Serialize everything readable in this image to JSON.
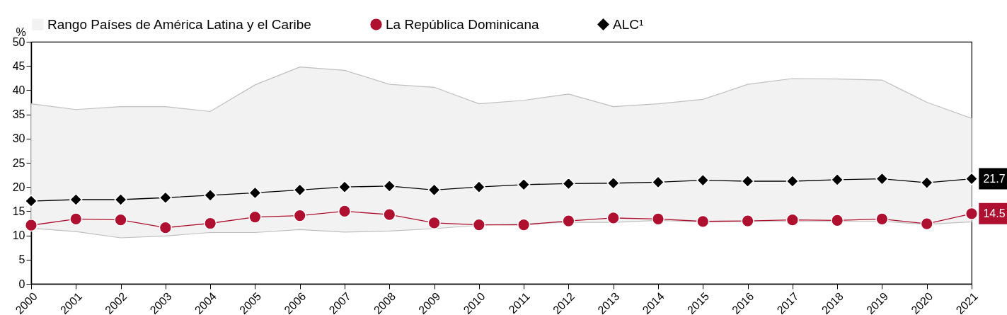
{
  "chart_data": {
    "type": "line",
    "ylabel": "%",
    "categories": [
      "2000",
      "2001",
      "2002",
      "2003",
      "2004",
      "2005",
      "2006",
      "2007",
      "2008",
      "2009",
      "2010",
      "2011",
      "2012",
      "2013",
      "2014",
      "2015",
      "2016",
      "2017",
      "2018",
      "2019",
      "2020",
      "2021"
    ],
    "series": [
      {
        "name": "Rango Países de América Latina y el Caribe",
        "color": "#f2f2f2",
        "values": [
          null,
          null,
          null,
          null,
          null,
          null,
          null,
          null,
          null,
          null,
          null,
          null,
          null,
          null,
          null,
          null,
          null,
          null,
          null,
          null,
          null,
          null
        ],
        "lower": [
          11.5,
          10.8,
          9.5,
          9.9,
          10.6,
          10.6,
          11.2,
          10.7,
          10.9,
          11.4,
          12.1,
          12.4,
          12.7,
          12.7,
          13.1,
          12.8,
          12.9,
          12.9,
          12.9,
          12.9,
          12.3,
          12.8
        ],
        "upper": [
          37.2,
          36.0,
          36.6,
          36.6,
          35.6,
          41.1,
          44.8,
          44.1,
          41.2,
          40.6,
          37.2,
          37.9,
          39.2,
          36.6,
          37.2,
          38.1,
          41.2,
          42.4,
          42.3,
          42.1,
          37.5,
          34.2
        ]
      },
      {
        "name": "La República Dominicana",
        "color": "#b01030",
        "marker": "circle",
        "values": [
          12.1,
          13.4,
          13.2,
          11.6,
          12.5,
          13.8,
          14.1,
          15.0,
          14.3,
          12.6,
          12.2,
          12.2,
          13.0,
          13.6,
          13.4,
          12.9,
          13.0,
          13.2,
          13.1,
          13.4,
          12.4,
          14.5
        ],
        "value_labels": [
          null,
          null,
          null,
          null,
          null,
          null,
          null,
          null,
          null,
          null,
          null,
          null,
          null,
          null,
          null,
          null,
          null,
          null,
          null,
          null,
          null,
          "14.5"
        ]
      },
      {
        "name": "ALC¹",
        "color": "#000000",
        "marker": "diamond",
        "values": [
          17.1,
          17.4,
          17.4,
          17.8,
          18.3,
          18.8,
          19.4,
          20.0,
          20.2,
          19.4,
          20.0,
          20.5,
          20.7,
          20.8,
          21.0,
          21.4,
          21.2,
          21.2,
          21.5,
          21.7,
          20.9,
          21.7
        ],
        "value_labels": [
          null,
          null,
          null,
          null,
          null,
          null,
          null,
          null,
          null,
          null,
          null,
          null,
          null,
          null,
          null,
          null,
          null,
          null,
          null,
          null,
          null,
          "21.7"
        ]
      }
    ],
    "ylim": [
      0,
      50
    ],
    "yticks": [
      0,
      5,
      10,
      15,
      20,
      25,
      30,
      35,
      40,
      45,
      50
    ],
    "legend": "top"
  }
}
